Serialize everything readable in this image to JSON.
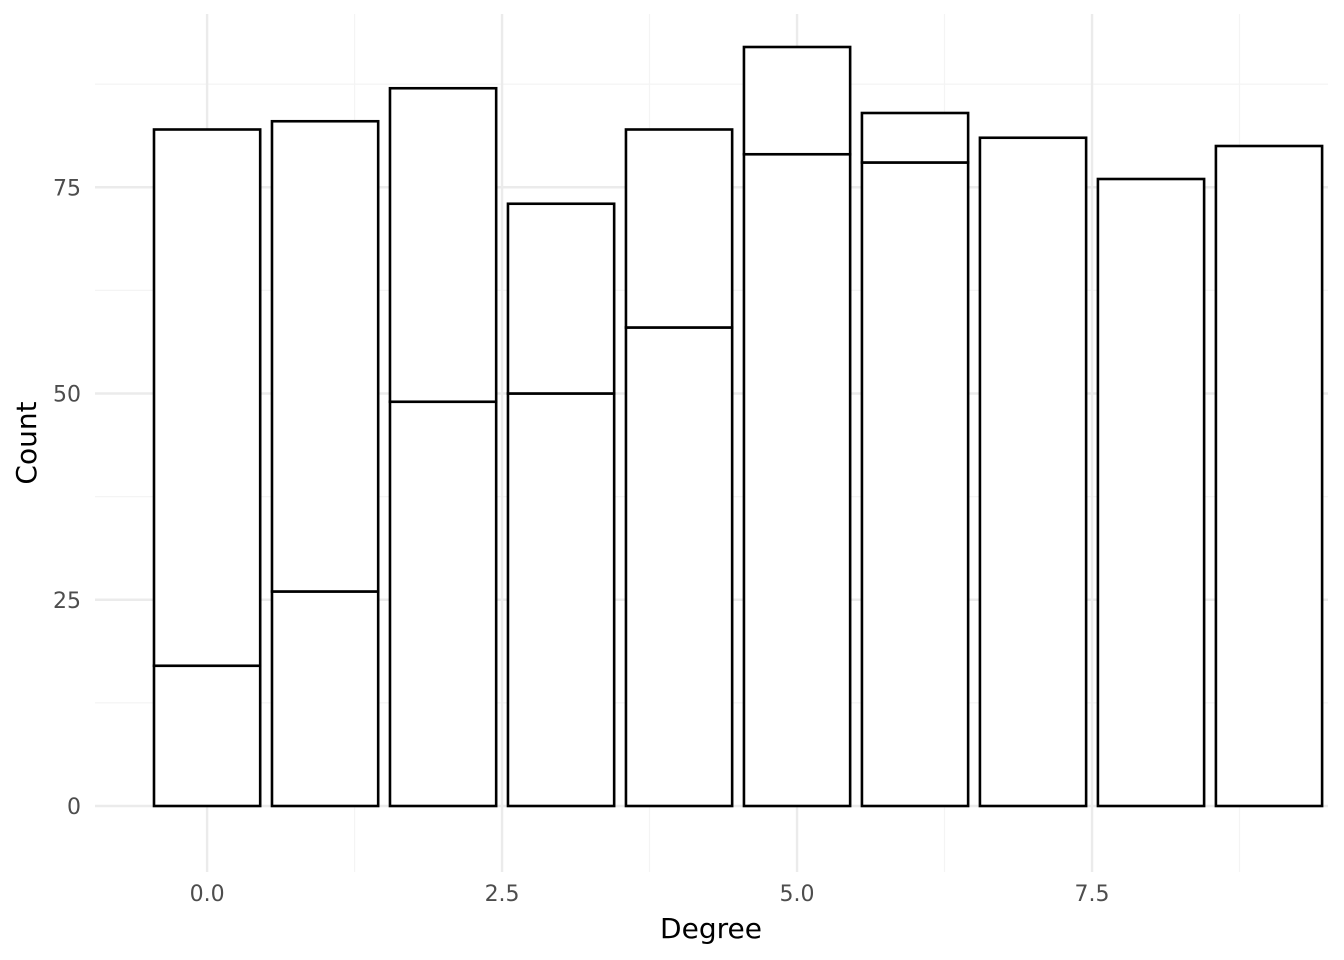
{
  "chart_data": {
    "type": "bar",
    "stacked": true,
    "title": "",
    "xlabel": "Degree",
    "ylabel": "Count",
    "xlim": [
      -0.95,
      9.5
    ],
    "ylim": [
      -8,
      96
    ],
    "x_ticks": [
      0.0,
      2.5,
      5.0,
      7.5
    ],
    "x_tick_labels": [
      "0.0",
      "2.5",
      "5.0",
      "7.5"
    ],
    "y_ticks": [
      0,
      25,
      50,
      75
    ],
    "y_tick_labels": [
      "0",
      "25",
      "50",
      "75"
    ],
    "x_minor_ticks": [
      1.25,
      3.75,
      6.25,
      8.75
    ],
    "y_minor_ticks": [
      12.5,
      37.5,
      62.5,
      87.5
    ],
    "bar_width": 0.9,
    "grid": true,
    "legend": "none",
    "bar_fill": "#ffffff",
    "bar_stroke": "#000000",
    "grid_major_color": "#ebebeb",
    "grid_minor_color": "#f4f4f4",
    "x": [
      0,
      1,
      2,
      3,
      4,
      5,
      6,
      7,
      8,
      9
    ],
    "series": [
      {
        "values": [
          17,
          26,
          49,
          50,
          58,
          79,
          78,
          81,
          76,
          80
        ]
      },
      {
        "values": [
          65,
          57,
          38,
          23,
          24,
          13,
          6,
          0,
          0,
          0
        ]
      }
    ]
  }
}
